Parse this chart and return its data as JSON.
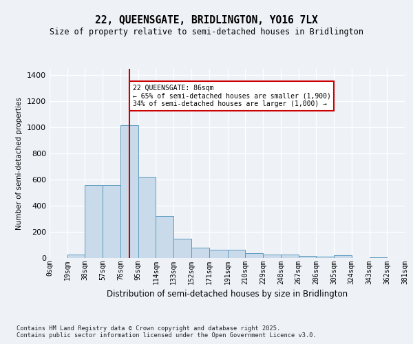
{
  "title_line1": "22, QUEENSGATE, BRIDLINGTON, YO16 7LX",
  "title_line2": "Size of property relative to semi-detached houses in Bridlington",
  "xlabel": "Distribution of semi-detached houses by size in Bridlington",
  "ylabel": "Number of semi-detached properties",
  "bin_labels": [
    "0sqm",
    "19sqm",
    "38sqm",
    "57sqm",
    "76sqm",
    "95sqm",
    "114sqm",
    "133sqm",
    "152sqm",
    "171sqm",
    "191sqm",
    "210sqm",
    "229sqm",
    "248sqm",
    "267sqm",
    "286sqm",
    "305sqm",
    "324sqm",
    "343sqm",
    "362sqm",
    "381sqm"
  ],
  "bin_edges": [
    0,
    19,
    38,
    57,
    76,
    95,
    114,
    133,
    152,
    171,
    191,
    210,
    229,
    248,
    267,
    286,
    305,
    324,
    343,
    362,
    381
  ],
  "bar_heights": [
    0,
    25,
    560,
    560,
    1020,
    620,
    320,
    150,
    80,
    65,
    65,
    35,
    25,
    25,
    15,
    8,
    20,
    0,
    5,
    0
  ],
  "bar_color": "#c9daea",
  "bar_edge_color": "#5b9abf",
  "vline_x": 86,
  "vline_color": "#cc0000",
  "annotation_text": "22 QUEENSGATE: 86sqm\n← 65% of semi-detached houses are smaller (1,900)\n34% of semi-detached houses are larger (1,000) →",
  "annotation_box_color": "#cc0000",
  "ylim": [
    0,
    1450
  ],
  "yticks": [
    0,
    200,
    400,
    600,
    800,
    1000,
    1200,
    1400
  ],
  "background_color": "#eef2f7",
  "grid_color": "#ffffff",
  "footnote": "Contains HM Land Registry data © Crown copyright and database right 2025.\nContains public sector information licensed under the Open Government Licence v3.0."
}
